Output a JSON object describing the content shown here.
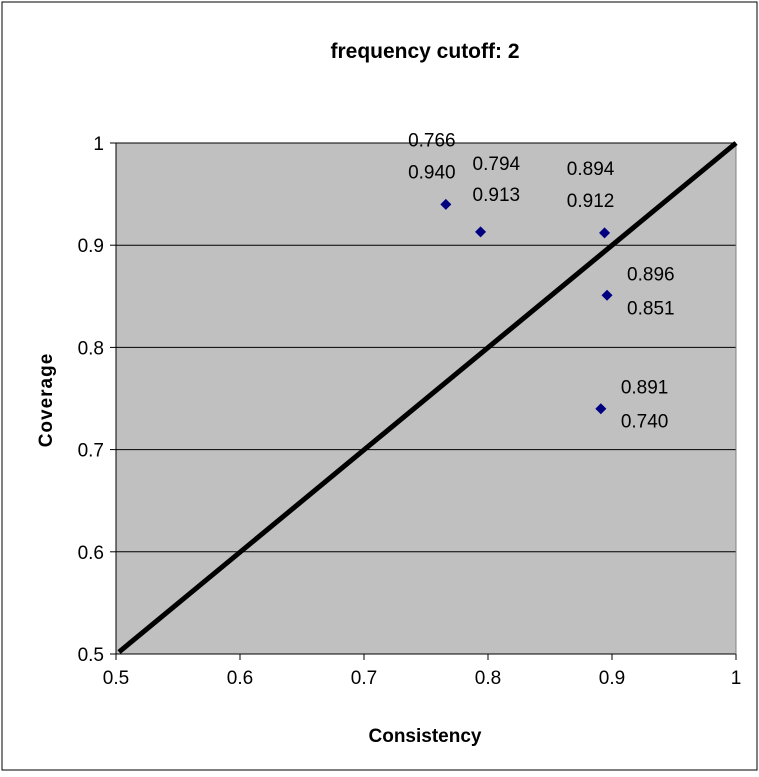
{
  "chart_data": {
    "type": "scatter",
    "title": "frequency cutoff: 2",
    "xlabel": "Consistency",
    "ylabel": "Coverage",
    "xlim": [
      0.5,
      1
    ],
    "ylim": [
      0.5,
      1
    ],
    "x_ticks": [
      {
        "value": 0.5,
        "label": "0.5"
      },
      {
        "value": 0.6,
        "label": "0.6"
      },
      {
        "value": 0.7,
        "label": "0.7"
      },
      {
        "value": 0.8,
        "label": "0.8"
      },
      {
        "value": 0.9,
        "label": "0.9"
      },
      {
        "value": 1.0,
        "label": "1"
      }
    ],
    "y_ticks": [
      {
        "value": 0.5,
        "label": "0.5"
      },
      {
        "value": 0.6,
        "label": "0.6"
      },
      {
        "value": 0.7,
        "label": "0.7"
      },
      {
        "value": 0.8,
        "label": "0.8"
      },
      {
        "value": 0.9,
        "label": "0.9"
      },
      {
        "value": 1.0,
        "label": "1"
      }
    ],
    "grid": "horizontal",
    "legend": "none",
    "series": [
      {
        "points": [
          {
            "x": 0.766,
            "y": 0.94,
            "label_x": "0.766",
            "label_y": "0.940",
            "label_position": "above"
          },
          {
            "x": 0.794,
            "y": 0.913,
            "label_x": "0.794",
            "label_y": "0.913",
            "label_position": "above-right"
          },
          {
            "x": 0.894,
            "y": 0.912,
            "label_x": "0.894",
            "label_y": "0.912",
            "label_position": "above"
          },
          {
            "x": 0.896,
            "y": 0.851,
            "label_x": "0.896",
            "label_y": "0.851",
            "label_position": "right"
          },
          {
            "x": 0.891,
            "y": 0.74,
            "label_x": "0.891",
            "label_y": "0.740",
            "label_position": "right"
          }
        ]
      }
    ],
    "reference_line": {
      "from": [
        0.5,
        0.5
      ],
      "to": [
        1,
        1
      ]
    },
    "colors": {
      "plot_background": "#c0c0c0",
      "marker": "#000080",
      "reference_line": "#000000",
      "gridline": "#000000"
    }
  }
}
